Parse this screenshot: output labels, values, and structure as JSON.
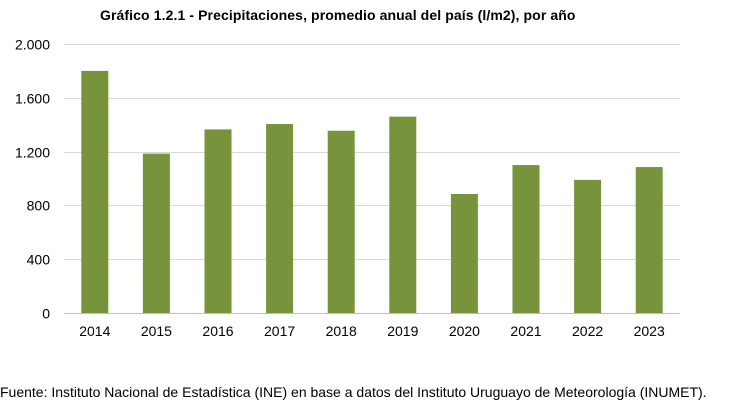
{
  "chart_data": {
    "type": "bar",
    "title": "Gráfico 1.2.1 - Precipitaciones, promedio anual del país (l/m2), por año",
    "xlabel": "",
    "ylabel": "",
    "categories": [
      "2014",
      "2015",
      "2016",
      "2017",
      "2018",
      "2019",
      "2020",
      "2021",
      "2022",
      "2023"
    ],
    "values": [
      1800,
      1185,
      1365,
      1405,
      1355,
      1460,
      885,
      1100,
      990,
      1085
    ],
    "ylim": [
      0,
      2000
    ],
    "yticks": [
      0,
      400,
      800,
      1200,
      1600,
      2000
    ],
    "ytick_labels": [
      "0",
      "400",
      "800",
      "1.200",
      "1.600",
      "2.000"
    ],
    "grid": true,
    "legend": "none",
    "bar_color": "#77933c",
    "grid_color": "#d9d9d9",
    "axis_color": "#bfbfbf"
  },
  "footer": {
    "source": "Fuente: Instituto Nacional de Estadística (INE) en base a datos del Instituto Uruguayo de Meteorología (INUMET)."
  }
}
